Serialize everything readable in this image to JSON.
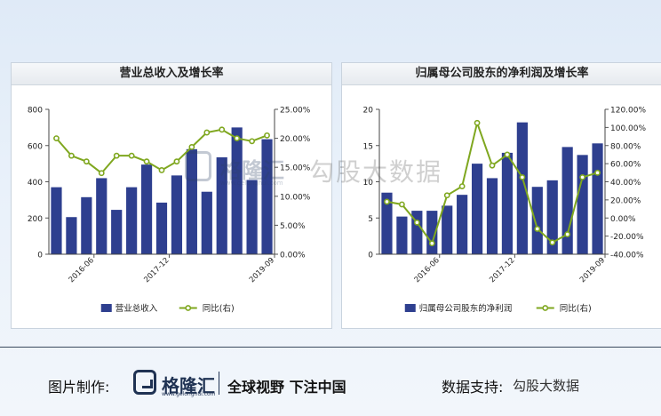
{
  "footer": {
    "made_by_label": "图片制作:",
    "brand": "格隆汇",
    "brand_sub": "www.gelonghui.com",
    "slogan": "全球视野 下注中国",
    "data_support_label": "数据支持:",
    "data_support_name": "勾股大数据"
  },
  "watermark": {
    "brand": "格隆汇",
    "brand_sub": "www.gelonghui.com",
    "text": "勾股大数据"
  },
  "colors": {
    "bar": "#2e3f8f",
    "line": "#7fa71f"
  },
  "chart_data": [
    {
      "type": "bar",
      "title": "营业总收入及增长率",
      "x_ticks": [
        {
          "index": 3,
          "label": "2016-06"
        },
        {
          "index": 8,
          "label": "2017-12"
        },
        {
          "index": 15,
          "label": "2019-09"
        }
      ],
      "series": [
        {
          "name": "营业总收入",
          "kind": "bar",
          "axis": "left",
          "values": [
            370,
            205,
            315,
            420,
            245,
            370,
            495,
            285,
            435,
            580,
            345,
            535,
            700,
            410,
            635
          ]
        },
        {
          "name": "同比(右)",
          "kind": "line",
          "axis": "right",
          "values": [
            20.0,
            17.0,
            16.0,
            14.0,
            17.0,
            17.0,
            16.0,
            14.5,
            16.0,
            18.5,
            21.0,
            21.5,
            20.0,
            19.5,
            20.5
          ]
        }
      ],
      "y_left": {
        "min": 0,
        "max": 800,
        "step": 200,
        "tick_labels": [
          "0",
          "200",
          "400",
          "600",
          "800"
        ]
      },
      "y_right": {
        "min": 0,
        "max": 25,
        "step": 5,
        "tick_labels": [
          "0.00%",
          "5.00%",
          "10.00%",
          "15.00%",
          "20.00%",
          "25.00%"
        ]
      },
      "legend": [
        "营业总收入",
        "同比(右)"
      ],
      "legend_position": "bottom"
    },
    {
      "type": "bar",
      "title": "归属母公司股东的净利润及增长率",
      "x_ticks": [
        {
          "index": 4,
          "label": "2016-06"
        },
        {
          "index": 9,
          "label": "2017-12"
        },
        {
          "index": 15,
          "label": "2019-09"
        }
      ],
      "series": [
        {
          "name": "归属母公司股东的净利润",
          "kind": "bar",
          "axis": "left",
          "values": [
            8.5,
            5.2,
            6.0,
            6.0,
            6.7,
            8.2,
            12.5,
            10.5,
            14.0,
            18.2,
            9.3,
            10.2,
            14.8,
            13.7,
            15.3
          ]
        },
        {
          "name": "同比(右)",
          "kind": "line",
          "axis": "right",
          "values": [
            18,
            15,
            -5,
            -28,
            25,
            35,
            105,
            58,
            70,
            45,
            -12,
            -27,
            -18,
            45,
            50
          ]
        }
      ],
      "y_left": {
        "min": 0,
        "max": 20,
        "step": 5,
        "tick_labels": [
          "0",
          "5",
          "10",
          "15",
          "20"
        ]
      },
      "y_right": {
        "min": -40,
        "max": 120,
        "step": 20,
        "tick_labels": [
          "-40.00%",
          "-20.00%",
          "0.00%",
          "20.00%",
          "40.00%",
          "60.00%",
          "80.00%",
          "100.00%",
          "120.00%"
        ]
      },
      "legend": [
        "归属母公司股东的净利润",
        "同比(右)"
      ],
      "legend_position": "bottom"
    }
  ]
}
